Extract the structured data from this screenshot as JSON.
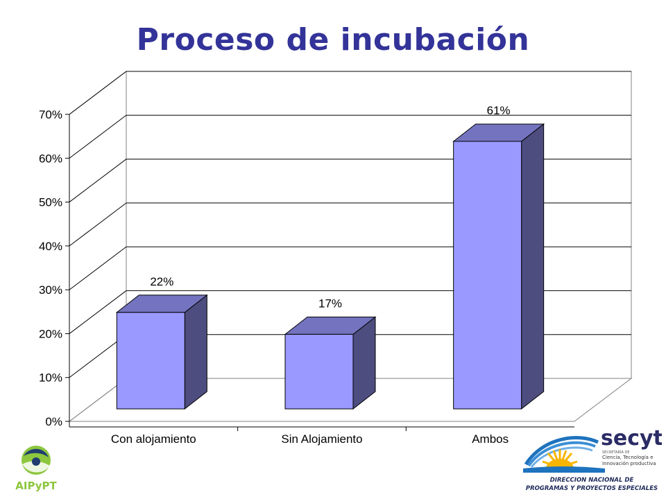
{
  "slide": {
    "title": "Proceso de incubación"
  },
  "chart_data": {
    "type": "bar",
    "categories": [
      "Con alojamiento",
      "Sin Alojamiento",
      "Ambos"
    ],
    "values": [
      22,
      17,
      61
    ],
    "data_labels": [
      "22%",
      "17%",
      "61%"
    ],
    "ylim": [
      0,
      70
    ],
    "y_ticks": [
      "0%",
      "10%",
      "20%",
      "30%",
      "40%",
      "50%",
      "60%",
      "70%"
    ],
    "grid": true,
    "legend": "none",
    "style": "3d-column",
    "colors": {
      "front": "#9999ff",
      "side": "#4d4d80",
      "top": "#7373bf"
    }
  },
  "logos": {
    "left": {
      "text": "AIPyPT",
      "color": "#8dc63f",
      "accent": "#1f3d6e"
    },
    "right": {
      "name": "secyt",
      "tagline_small": "SECRETARÍA DE",
      "tagline": [
        "Ciencia, Tecnología e",
        "Innovación productiva"
      ],
      "caption": [
        "DIRECCION NACIONAL DE",
        "PROGRAMAS Y PROYECTOS ESPECIALES"
      ]
    }
  }
}
